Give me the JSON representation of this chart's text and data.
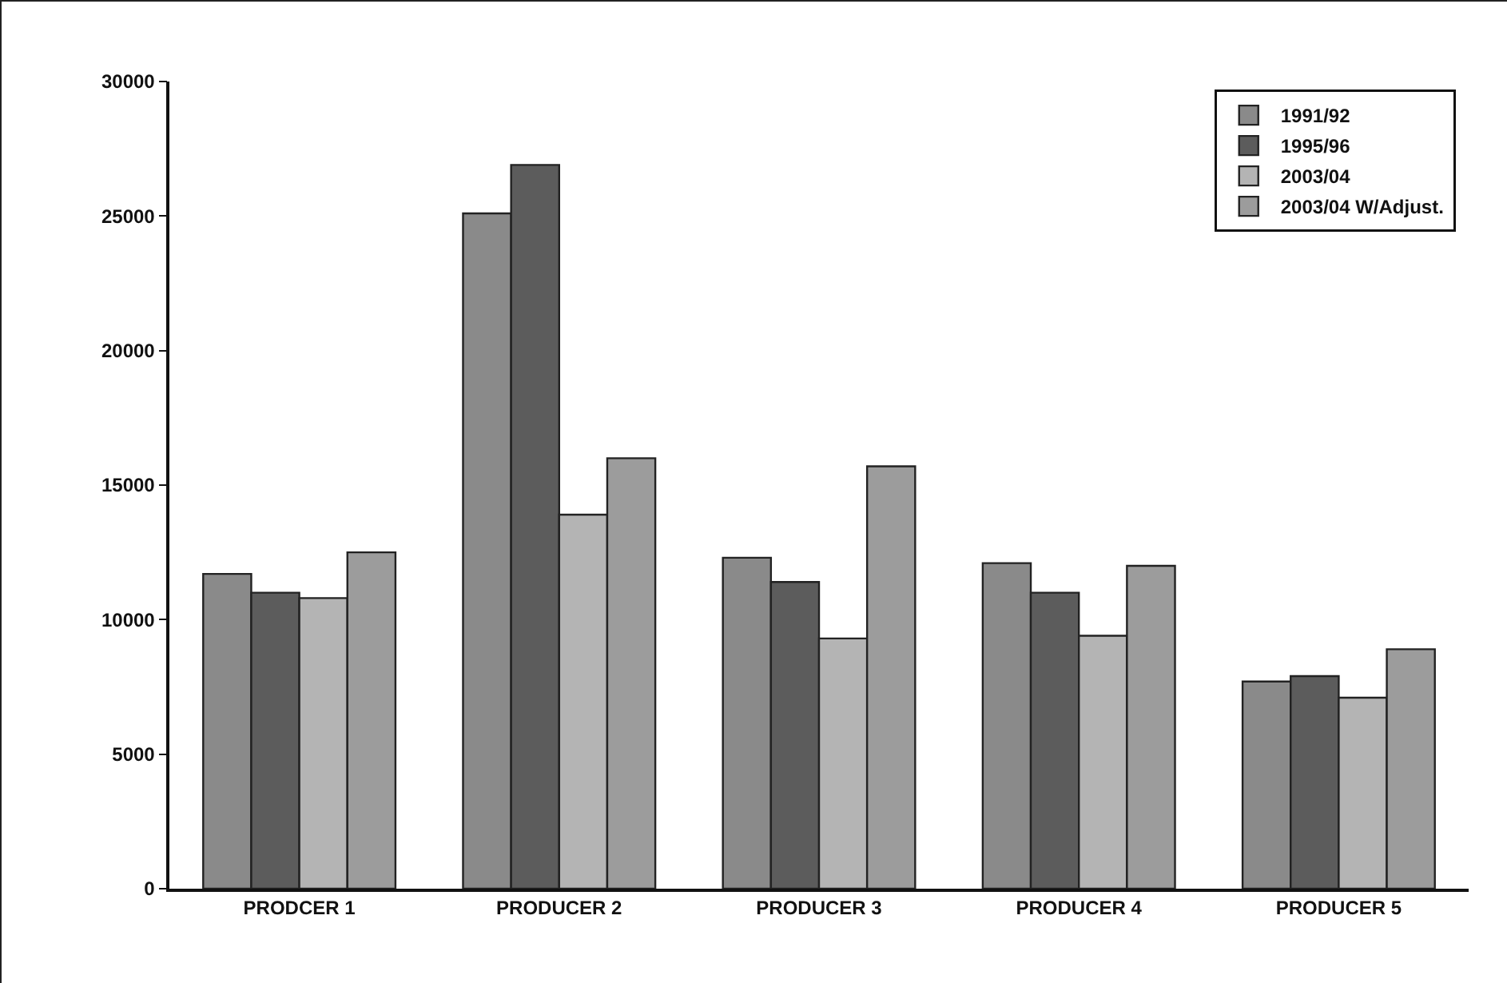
{
  "chart_data": {
    "type": "bar",
    "categories": [
      "PRODCER 1",
      "PRODUCER 2",
      "PRODUCER 3",
      "PRODUCER 4",
      "PRODUCER 5"
    ],
    "series": [
      {
        "name": "1991/92",
        "color": "#8a8a8a",
        "values": [
          11700,
          25100,
          12300,
          12100,
          7700
        ]
      },
      {
        "name": "1995/96",
        "color": "#5c5c5c",
        "values": [
          11000,
          26900,
          11400,
          11000,
          7900
        ]
      },
      {
        "name": "2003/04",
        "color": "#b4b4b4",
        "values": [
          10800,
          13900,
          9300,
          9400,
          7100
        ]
      },
      {
        "name": "2003/04 W/Adjust.",
        "color": "#9c9c9c",
        "values": [
          12500,
          16000,
          15700,
          12000,
          8900
        ]
      }
    ],
    "ylim": [
      0,
      30000
    ],
    "yticks": [
      0,
      5000,
      10000,
      15000,
      20000,
      25000,
      30000
    ],
    "grid": false,
    "legend": "top right"
  }
}
